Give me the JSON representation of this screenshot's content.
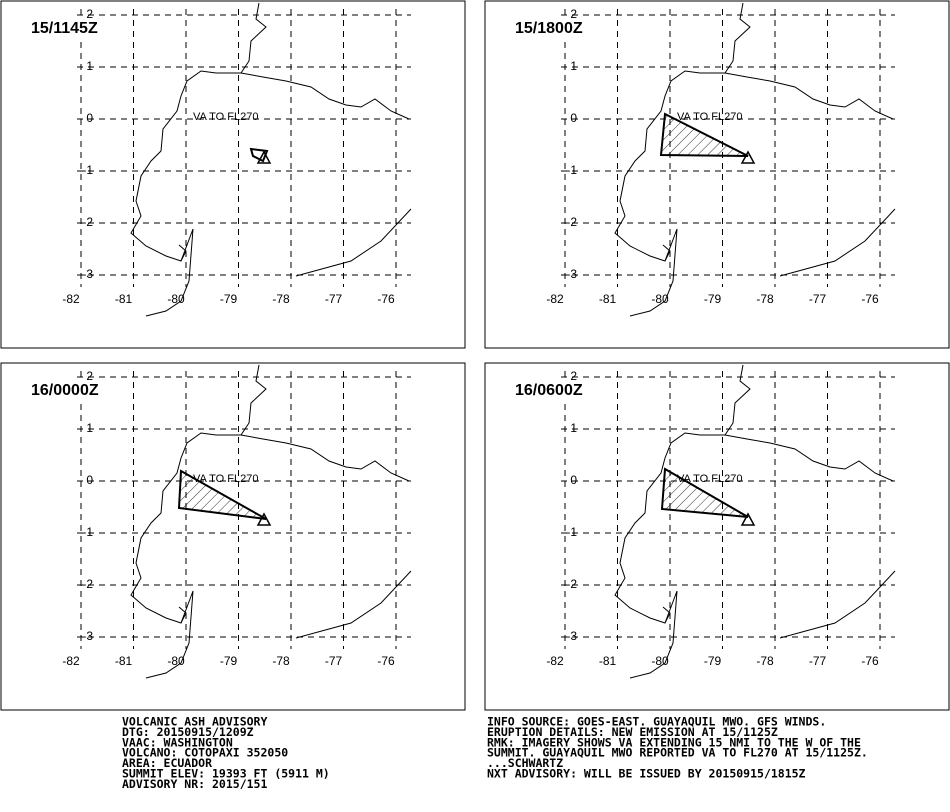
{
  "panels": [
    {
      "time": "15/1145Z",
      "annotation": "VA TO FL270"
    },
    {
      "time": "15/1800Z",
      "annotation": "VA TO FL270"
    },
    {
      "time": "16/0000Z",
      "annotation": "VA TO FL270"
    },
    {
      "time": "16/0600Z",
      "annotation": "VA TO FL270"
    }
  ],
  "lat_labels": [
    "2",
    "1",
    "0",
    "-1",
    "-2",
    "-3"
  ],
  "lon_labels": [
    "-82",
    "-81",
    "-80",
    "-79",
    "-78",
    "-77",
    "-76"
  ],
  "advisory_left": [
    "VOLCANIC ASH ADVISORY",
    "DTG: 20150915/1209Z",
    "VAAC: WASHINGTON",
    "VOLCANO: COTOPAXI 352050",
    "AREA: ECUADOR",
    "SUMMIT ELEV: 19393 FT (5911 M)",
    "ADVISORY NR: 2015/151"
  ],
  "advisory_right": [
    "INFO SOURCE: GOES-EAST. GUAYAQUIL MWO. GFS WINDS.",
    "ERUPTION DETAILS: NEW EMISSION AT 15/1125Z",
    "RMK: IMAGERY SHOWS VA EXTENDING 15 NMI TO THE W OF THE",
    "SUMMIT. GUAYAQUIL MWO REPORTED VA TO FL270 AT 15/1125Z.",
    "...SCHWARTZ",
    "NXT ADVISORY: WILL BE ISSUED BY 20150915/1815Z"
  ]
}
